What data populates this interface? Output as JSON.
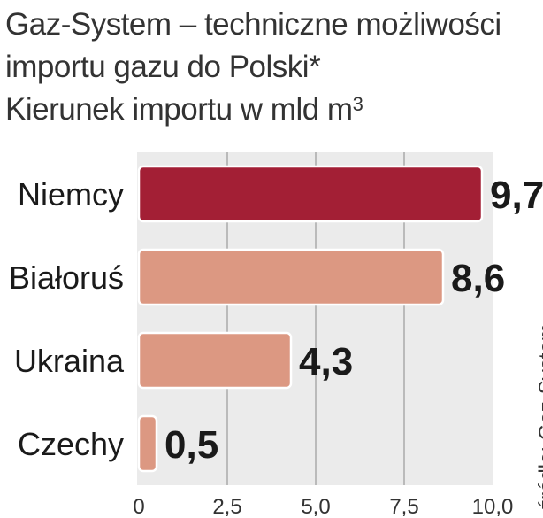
{
  "title": {
    "line1": "Gaz-System – techniczne możliwości",
    "line2": "importu gazu do Polski*",
    "line3": "Kierunek importu w mld m",
    "line3_sup": "3"
  },
  "source": "źródło: Gaz-System",
  "chart_data": {
    "type": "bar",
    "orientation": "horizontal",
    "categories": [
      "Niemcy",
      "Białoruś",
      "Ukraina",
      "Czechy"
    ],
    "values": [
      9.7,
      8.6,
      4.3,
      0.5
    ],
    "value_labels": [
      "9,7",
      "8,6",
      "4,3",
      "0,5"
    ],
    "xlim": [
      0,
      10
    ],
    "xticks": [
      "0",
      "2,5",
      "5,0",
      "7,5",
      "10,0"
    ],
    "grid": true,
    "colors": {
      "highlight": "#a31f35",
      "default": "#dc9882",
      "panel": "#ebebeb",
      "grid": "#9a9a9a"
    }
  }
}
